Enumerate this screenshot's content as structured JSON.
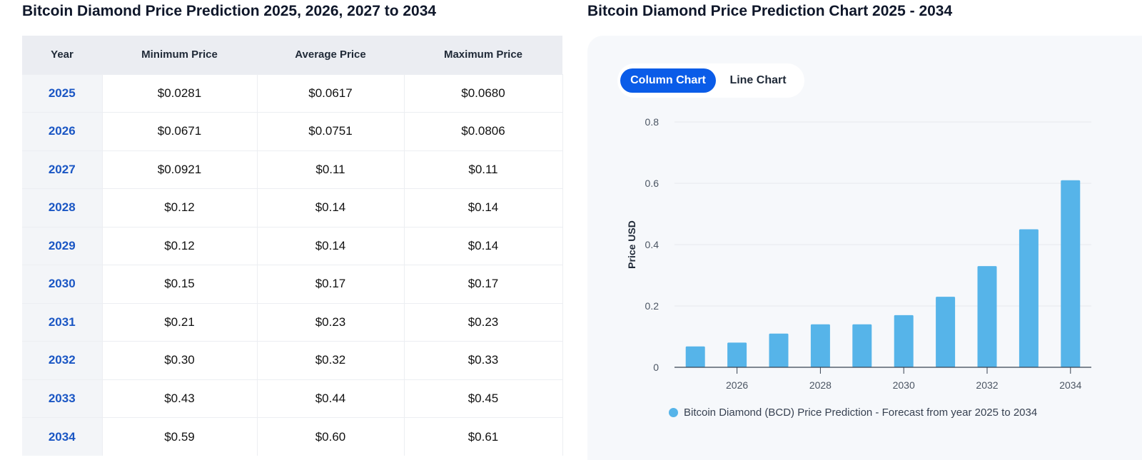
{
  "left_title": "Bitcoin Diamond Price Prediction 2025, 2026, 2027 to 2034",
  "right_title": "Bitcoin Diamond Price Prediction Chart 2025 - 2034",
  "table": {
    "headers": [
      "Year",
      "Minimum Price",
      "Average Price",
      "Maximum Price"
    ],
    "rows": [
      [
        "2025",
        "$0.0281",
        "$0.0617",
        "$0.0680"
      ],
      [
        "2026",
        "$0.0671",
        "$0.0751",
        "$0.0806"
      ],
      [
        "2027",
        "$0.0921",
        "$0.11",
        "$0.11"
      ],
      [
        "2028",
        "$0.12",
        "$0.14",
        "$0.14"
      ],
      [
        "2029",
        "$0.12",
        "$0.14",
        "$0.14"
      ],
      [
        "2030",
        "$0.15",
        "$0.17",
        "$0.17"
      ],
      [
        "2031",
        "$0.21",
        "$0.23",
        "$0.23"
      ],
      [
        "2032",
        "$0.30",
        "$0.32",
        "$0.33"
      ],
      [
        "2033",
        "$0.43",
        "$0.44",
        "$0.45"
      ],
      [
        "2034",
        "$0.59",
        "$0.60",
        "$0.61"
      ]
    ]
  },
  "toggle": {
    "active": "Column Chart",
    "inactive": "Line Chart"
  },
  "colors": {
    "bar": "#56b4e9",
    "accent": "#0a5ce8",
    "year_link": "#1a56c4"
  },
  "chart_data": {
    "type": "bar",
    "x": [
      2025,
      2026,
      2027,
      2028,
      2029,
      2030,
      2031,
      2032,
      2033,
      2034
    ],
    "values": [
      0.068,
      0.0806,
      0.11,
      0.14,
      0.14,
      0.17,
      0.23,
      0.33,
      0.45,
      0.61
    ],
    "x_tick_labels": [
      "2026",
      "2028",
      "2030",
      "2032",
      "2034"
    ],
    "y_tick_labels": [
      "0",
      "0.2",
      "0.4",
      "0.6",
      "0.8"
    ],
    "ylabel": "Price USD",
    "ylim": [
      0,
      0.8
    ],
    "grid": true,
    "legend": "Bitcoin Diamond (BCD) Price Prediction - Forecast from year 2025 to 2034",
    "legend_position": "bottom"
  }
}
